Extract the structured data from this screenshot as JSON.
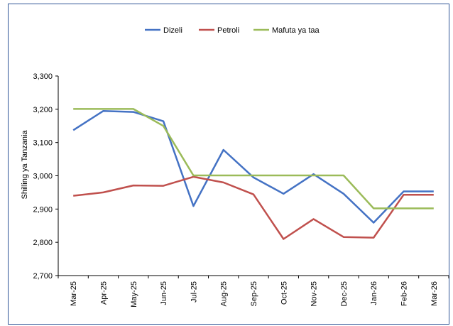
{
  "chart_data": {
    "type": "line",
    "categories": [
      "Mar-25",
      "Apr-25",
      "May-25",
      "Jun-25",
      "Jul-25",
      "Aug-25",
      "Sep-25",
      "Oct-25",
      "Nov-25",
      "Dec-25",
      "Jan-26",
      "Feb-26",
      "Mar-26"
    ],
    "series": [
      {
        "name": "Dizeli",
        "color": "#4472c4",
        "values": [
          3137,
          3195,
          3192,
          3164,
          2909,
          3078,
          2995,
          2946,
          3005,
          2946,
          2859,
          2953,
          2953
        ]
      },
      {
        "name": "Petroli",
        "color": "#c0504d",
        "values": [
          2940,
          2950,
          2971,
          2970,
          2997,
          2980,
          2944,
          2810,
          2870,
          2816,
          2814,
          2943,
          2943
        ]
      },
      {
        "name": "Mafuta ya taa",
        "color": "#9bbb59",
        "values": [
          3201,
          3201,
          3201,
          3150,
          3001,
          3001,
          3001,
          3001,
          3001,
          3001,
          2902,
          2902,
          2902
        ]
      }
    ],
    "ylabel": "Shilling ya Tanzania",
    "ylim": [
      2700,
      3300
    ],
    "yticks": [
      2700,
      2800,
      2900,
      3000,
      3100,
      3200,
      3300
    ],
    "ytick_labels": [
      "2,700",
      "2,800",
      "2,900",
      "3,000",
      "3,100",
      "3,200",
      "3,300"
    ],
    "grid": false,
    "legend_position": "top"
  }
}
